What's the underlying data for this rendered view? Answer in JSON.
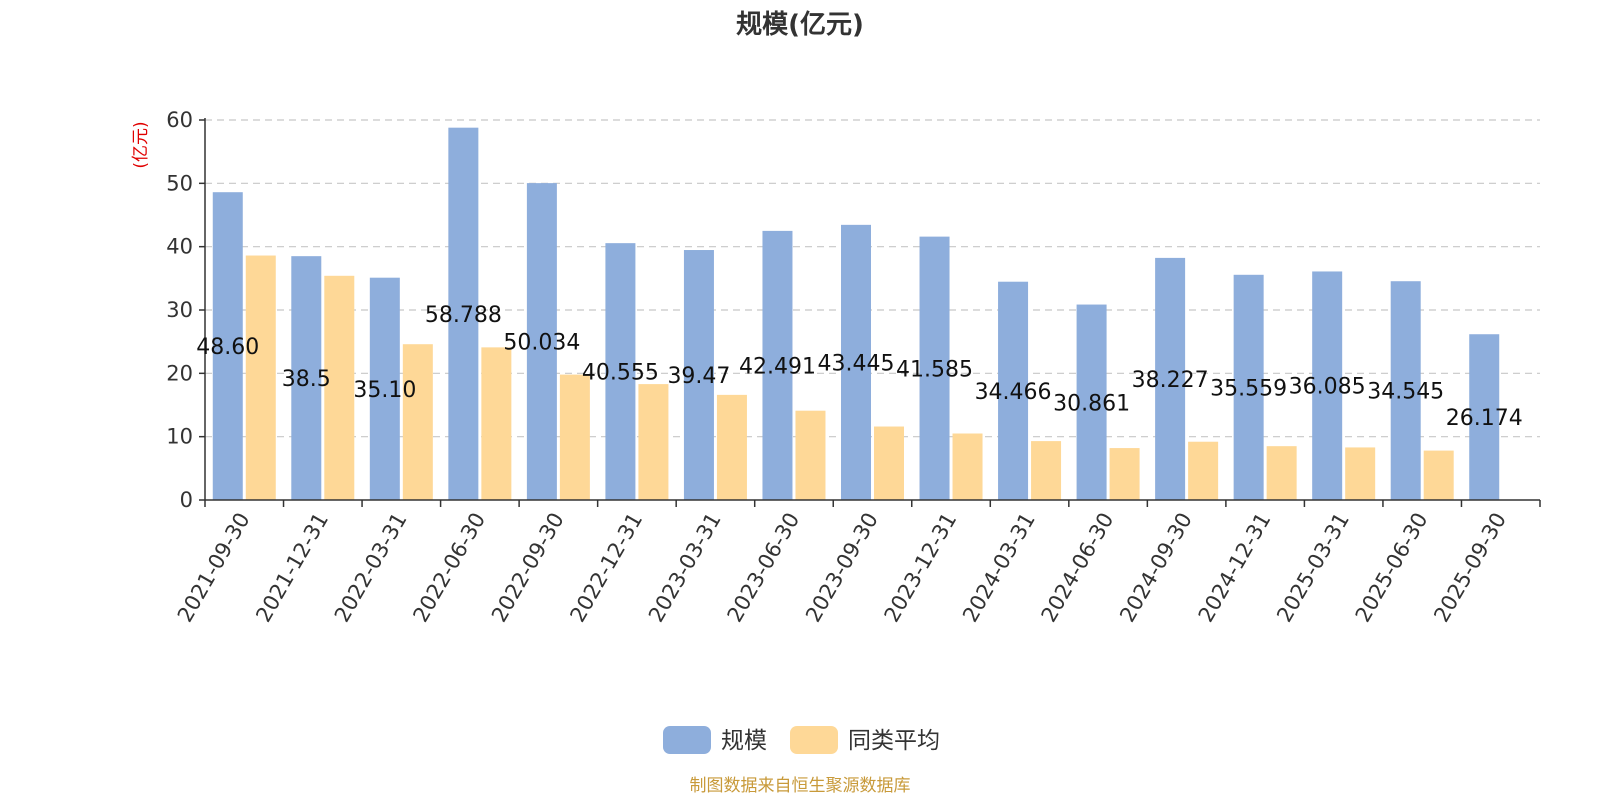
{
  "chart_data": {
    "type": "bar",
    "title": "规模(亿元)",
    "ylabel": "(亿元)",
    "ylim": [
      0,
      60
    ],
    "yticks": [
      0,
      10,
      20,
      30,
      40,
      50,
      60
    ],
    "grid": true,
    "legend_position": "bottom",
    "categories": [
      "2021-09-30",
      "2021-12-31",
      "2022-03-31",
      "2022-06-30",
      "2022-09-30",
      "2022-12-31",
      "2023-03-31",
      "2023-06-30",
      "2023-09-30",
      "2023-12-31",
      "2024-03-31",
      "2024-06-30",
      "2024-09-30",
      "2024-12-31",
      "2025-03-31",
      "2025-06-30",
      "2025-09-30"
    ],
    "series": [
      {
        "name": "规模",
        "color": "#8eaedc",
        "values": [
          48.6,
          38.5,
          35.1,
          58.788,
          50.034,
          40.555,
          39.47,
          42.491,
          43.445,
          41.585,
          34.466,
          30.861,
          38.227,
          35.559,
          36.085,
          34.545,
          26.174
        ],
        "data_labels": [
          "48.60",
          "38.5",
          "35.10",
          "58.788",
          "50.034",
          "40.555",
          "39.47",
          "42.491",
          "43.445",
          "41.585",
          "34.466",
          "30.861",
          "38.227",
          "35.559",
          "36.085",
          "34.545",
          "26.174"
        ]
      },
      {
        "name": "同类平均",
        "color": "#fed897",
        "values": [
          38.6,
          35.4,
          24.6,
          24.1,
          19.8,
          18.3,
          16.6,
          14.1,
          11.6,
          10.5,
          9.3,
          8.2,
          9.2,
          8.5,
          8.3,
          7.8,
          null
        ]
      }
    ],
    "source": "制图数据来自恒生聚源数据库"
  }
}
